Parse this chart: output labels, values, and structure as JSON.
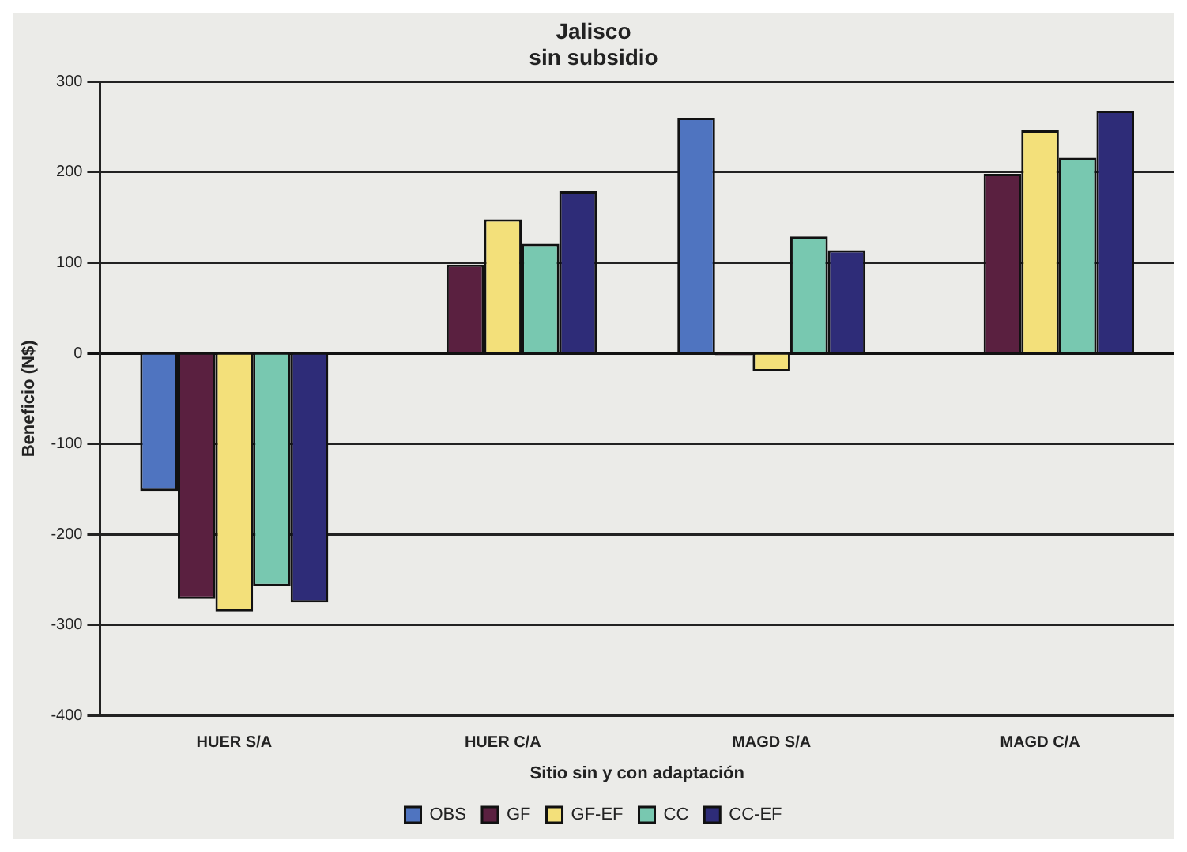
{
  "chart_data": {
    "type": "bar",
    "title": "Jalisco\nsin subsidio",
    "xlabel": "Sitio sin y con adaptación",
    "ylabel": "Beneficio (N$)",
    "categories": [
      "HUER S/A",
      "HUER C/A",
      "MAGD S/A",
      "MAGD C/A"
    ],
    "series": [
      {
        "name": "OBS",
        "color": "#4f74c0",
        "values": [
          -152,
          null,
          260,
          null
        ]
      },
      {
        "name": "GF",
        "color": "#5a2040",
        "values": [
          -271,
          98,
          -2,
          198
        ]
      },
      {
        "name": "GF-EF",
        "color": "#f3e07a",
        "values": [
          -285,
          148,
          -20,
          246
        ]
      },
      {
        "name": "CC",
        "color": "#78c8b0",
        "values": [
          -257,
          121,
          129,
          216
        ]
      },
      {
        "name": "CC-EF",
        "color": "#2e2c78",
        "values": [
          -275,
          179,
          114,
          268
        ]
      }
    ],
    "ylim": [
      -400,
      300
    ],
    "yticks": [
      -400,
      -300,
      -200,
      -100,
      0,
      100,
      200,
      300
    ],
    "grid": "y",
    "legend": "bottom"
  }
}
